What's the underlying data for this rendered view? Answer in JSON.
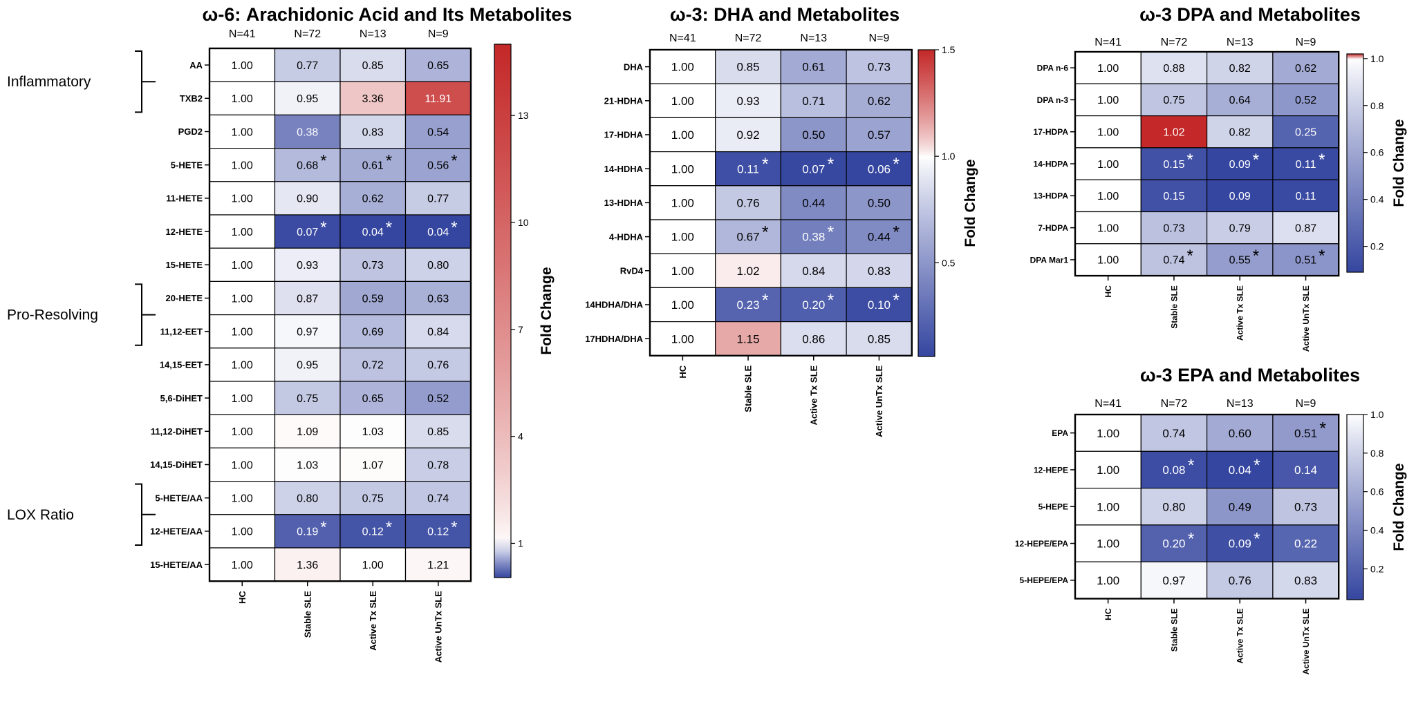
{
  "figure": {
    "panels": [
      "aa",
      "dha",
      "dpa",
      "epa"
    ]
  },
  "chart_data": [
    {
      "id": "aa",
      "type": "heatmap",
      "title": "ω-6: Arachidonic Acid and Its Metabolites",
      "n_labels": [
        "N=41",
        "N=72",
        "N=13",
        "N=9"
      ],
      "columns": [
        "HC",
        "Stable SLE",
        "Active Tx SLE",
        "Active UnTx SLE"
      ],
      "rows": [
        "AA",
        "TXB2",
        "PGD2",
        "5-HETE",
        "11-HETE",
        "12-HETE",
        "15-HETE",
        "20-HETE",
        "11,12-EET",
        "14,15-EET",
        "5,6-DiHET",
        "11,12-DiHET",
        "14,15-DiHET",
        "5-HETE/AA",
        "12-HETE/AA",
        "15-HETE/AA"
      ],
      "values": [
        [
          "1.00",
          "0.77",
          "0.85",
          "0.65"
        ],
        [
          "1.00",
          "0.95",
          "3.36",
          "11.91"
        ],
        [
          "1.00",
          "0.38",
          "0.83",
          "0.54"
        ],
        [
          "1.00",
          "0.68",
          "0.61",
          "0.56"
        ],
        [
          "1.00",
          "0.90",
          "0.62",
          "0.77"
        ],
        [
          "1.00",
          "0.07",
          "0.04",
          "0.04"
        ],
        [
          "1.00",
          "0.93",
          "0.73",
          "0.80"
        ],
        [
          "1.00",
          "0.87",
          "0.59",
          "0.63"
        ],
        [
          "1.00",
          "0.97",
          "0.69",
          "0.84"
        ],
        [
          "1.00",
          "0.95",
          "0.72",
          "0.76"
        ],
        [
          "1.00",
          "0.75",
          "0.65",
          "0.52"
        ],
        [
          "1.00",
          "1.09",
          "1.03",
          "0.85"
        ],
        [
          "1.00",
          "1.03",
          "1.07",
          "0.78"
        ],
        [
          "1.00",
          "0.80",
          "0.75",
          "0.74"
        ],
        [
          "1.00",
          "0.19",
          "0.12",
          "0.12"
        ],
        [
          "1.00",
          "1.36",
          "1.00",
          "1.21"
        ]
      ],
      "significant": [
        [
          3,
          1
        ],
        [
          3,
          2
        ],
        [
          3,
          3
        ],
        [
          5,
          1
        ],
        [
          5,
          2
        ],
        [
          5,
          3
        ],
        [
          14,
          1
        ],
        [
          14,
          2
        ],
        [
          14,
          3
        ]
      ],
      "groups": [
        {
          "label": "Inflammatory",
          "from": 0,
          "to": 1
        },
        {
          "label": "Pro-Resolving",
          "from": 7,
          "to": 8
        },
        {
          "label": "LOX Ratio",
          "from": 13,
          "to": 14
        }
      ],
      "colorbar": {
        "label": "Fold Change",
        "min": 0.04,
        "mid": 1,
        "max": 15,
        "ticks": [
          "1",
          "4",
          "7",
          "10",
          "13"
        ]
      }
    },
    {
      "id": "dha",
      "type": "heatmap",
      "title": "ω-3: DHA and Metabolites",
      "n_labels": [
        "N=41",
        "N=72",
        "N=13",
        "N=9"
      ],
      "columns": [
        "HC",
        "Stable SLE",
        "Active Tx SLE",
        "Active UnTx SLE"
      ],
      "rows": [
        "DHA",
        "21-HDHA",
        "17-HDHA",
        "14-HDHA",
        "13-HDHA",
        "4-HDHA",
        "RvD4",
        "14HDHA/DHA",
        "17HDHA/DHA"
      ],
      "values": [
        [
          "1.00",
          "0.85",
          "0.61",
          "0.73"
        ],
        [
          "1.00",
          "0.93",
          "0.71",
          "0.62"
        ],
        [
          "1.00",
          "0.92",
          "0.50",
          "0.57"
        ],
        [
          "1.00",
          "0.11",
          "0.07",
          "0.06"
        ],
        [
          "1.00",
          "0.76",
          "0.44",
          "0.50"
        ],
        [
          "1.00",
          "0.67",
          "0.38",
          "0.44"
        ],
        [
          "1.00",
          "1.02",
          "0.84",
          "0.83"
        ],
        [
          "1.00",
          "0.23",
          "0.20",
          "0.10"
        ],
        [
          "1.00",
          "1.15",
          "0.86",
          "0.85"
        ]
      ],
      "significant": [
        [
          3,
          1
        ],
        [
          3,
          2
        ],
        [
          3,
          3
        ],
        [
          5,
          1
        ],
        [
          5,
          2
        ],
        [
          5,
          3
        ],
        [
          7,
          1
        ],
        [
          7,
          2
        ],
        [
          7,
          3
        ]
      ],
      "groups": [],
      "colorbar": {
        "label": "Fold Change",
        "min": 0.06,
        "mid": 1,
        "max": 1.5,
        "ticks": [
          "0.5",
          "1.0",
          "1.5"
        ]
      }
    },
    {
      "id": "dpa",
      "type": "heatmap",
      "title": "ω-3 DPA and Metabolites",
      "n_labels": [
        "N=41",
        "N=72",
        "N=13",
        "N=9"
      ],
      "columns": [
        "HC",
        "Stable SLE",
        "Active Tx SLE",
        "Active UnTx SLE"
      ],
      "rows": [
        "DPA n-6",
        "DPA n-3",
        "17-HDPA",
        "14-HDPA",
        "13-HDPA",
        "7-HDPA",
        "DPA Mar1"
      ],
      "values": [
        [
          "1.00",
          "0.88",
          "0.82",
          "0.62"
        ],
        [
          "1.00",
          "0.75",
          "0.64",
          "0.52"
        ],
        [
          "1.00",
          "1.02",
          "0.82",
          "0.25"
        ],
        [
          "1.00",
          "0.15",
          "0.09",
          "0.11"
        ],
        [
          "1.00",
          "0.15",
          "0.09",
          "0.11"
        ],
        [
          "1.00",
          "0.73",
          "0.79",
          "0.87"
        ],
        [
          "1.00",
          "0.74",
          "0.55",
          "0.51"
        ]
      ],
      "significant": [
        [
          3,
          1
        ],
        [
          3,
          2
        ],
        [
          3,
          3
        ],
        [
          6,
          1
        ],
        [
          6,
          2
        ],
        [
          6,
          3
        ]
      ],
      "groups": [],
      "colorbar": {
        "label": "Fold Change",
        "min": 0.09,
        "mid": 1,
        "max": 1.02,
        "ticks": [
          "0.2",
          "0.4",
          "0.6",
          "0.8",
          "1.0"
        ]
      }
    },
    {
      "id": "epa",
      "type": "heatmap",
      "title": "ω-3 EPA and Metabolites",
      "n_labels": [
        "N=41",
        "N=72",
        "N=13",
        "N=9"
      ],
      "columns": [
        "HC",
        "Stable SLE",
        "Active Tx SLE",
        "Active UnTx SLE"
      ],
      "rows": [
        "EPA",
        "12-HEPE",
        "5-HEPE",
        "12-HEPE/EPA",
        "5-HEPE/EPA"
      ],
      "values": [
        [
          "1.00",
          "0.74",
          "0.60",
          "0.51"
        ],
        [
          "1.00",
          "0.08",
          "0.04",
          "0.14"
        ],
        [
          "1.00",
          "0.80",
          "0.49",
          "0.73"
        ],
        [
          "1.00",
          "0.20",
          "0.09",
          "0.22"
        ],
        [
          "1.00",
          "0.97",
          "0.76",
          "0.83"
        ]
      ],
      "significant": [
        [
          0,
          3
        ],
        [
          1,
          1
        ],
        [
          1,
          2
        ],
        [
          3,
          1
        ],
        [
          3,
          2
        ]
      ],
      "groups": [],
      "colorbar": {
        "label": "Fold Change",
        "min": 0.04,
        "mid": 1,
        "max": 1,
        "ticks": [
          "0.2",
          "0.4",
          "0.6",
          "0.8",
          "1.0"
        ]
      }
    }
  ]
}
